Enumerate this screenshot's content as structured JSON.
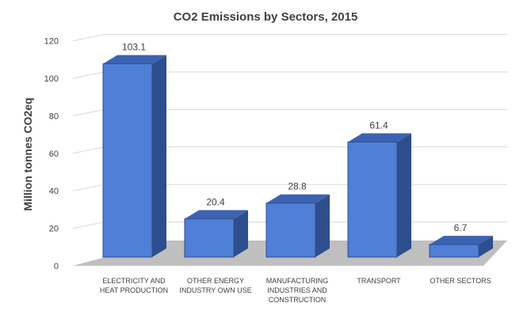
{
  "chart_data": {
    "type": "bar",
    "title": "CO2 Emissions  by Sectors, 2015",
    "ylabel": "Million tonnes CO2eq",
    "xlabel": "",
    "ylim": [
      0,
      120
    ],
    "yticks": [
      "0",
      "20",
      "40",
      "60",
      "80",
      "100",
      "120"
    ],
    "grid": true,
    "legend": "none",
    "style": "3d",
    "colors": {
      "front": "#4F7FD6",
      "side": "#2E4E8E",
      "top": "#3C63B2",
      "floor": "#BFBFBF",
      "grid": "#D9D9D9"
    },
    "categories": [
      [
        "ELECTRICITY AND",
        "HEAT PRODUCTION"
      ],
      [
        "OTHER ENERGY",
        "INDUSTRY OWN USE"
      ],
      [
        "MANUFACTURING",
        "INDUSTRIES AND",
        "CONSTRUCTION"
      ],
      [
        "TRANSPORT"
      ],
      [
        "OTHER SECTORS"
      ]
    ],
    "values": [
      103.1,
      20.4,
      28.8,
      61.4,
      6.7
    ],
    "data_labels": [
      "103.1",
      "20.4",
      "28.8",
      "61.4",
      "6.7"
    ]
  }
}
